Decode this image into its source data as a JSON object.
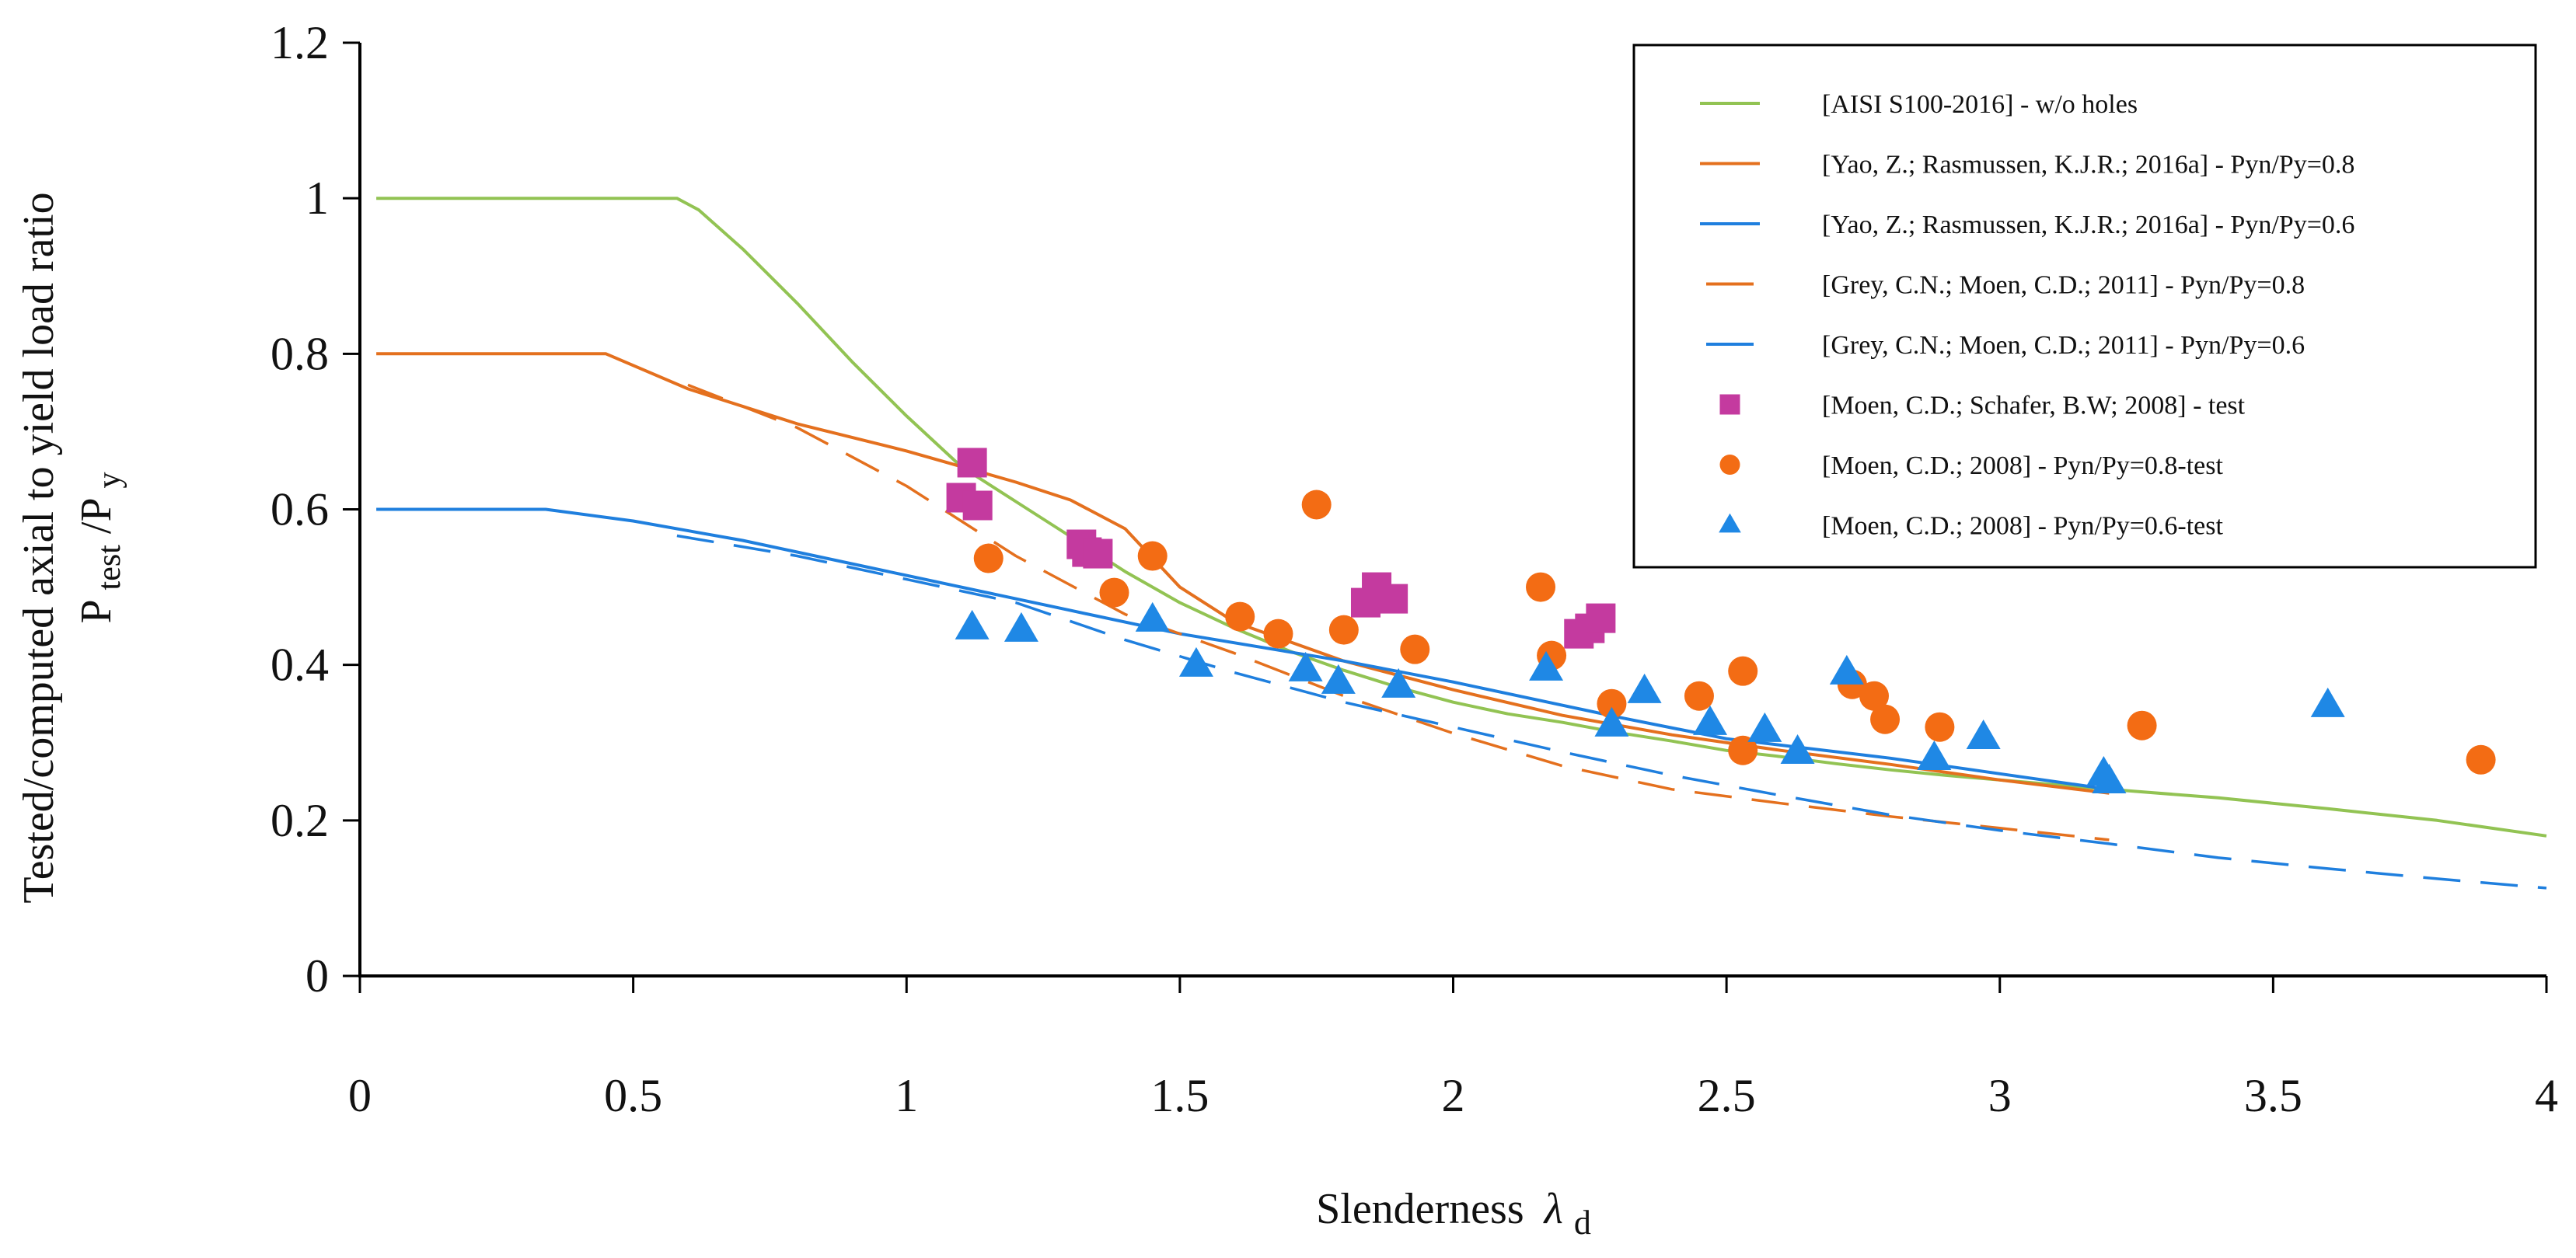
{
  "chart_data": {
    "type": "scatter",
    "xlabel": "Slenderness",
    "xlabel_symbol": "λ",
    "xlabel_subscript": "d",
    "ylabel_line1": "Tested/computed axial to yield load ratio",
    "ylabel_line2_main": "P",
    "ylabel_line2_sub1": "test",
    "ylabel_line2_div": "/P",
    "ylabel_line2_sub2": "y",
    "xlim": [
      0,
      4
    ],
    "ylim": [
      0,
      1.2
    ],
    "xticks": [
      0,
      0.5,
      1,
      1.5,
      2,
      2.5,
      3,
      3.5,
      4
    ],
    "xtick_labels": [
      "0",
      "0.5",
      "1",
      "1.5",
      "2",
      "2.5",
      "3",
      "3.5",
      "4"
    ],
    "yticks": [
      0,
      0.2,
      0.4,
      0.6,
      0.8,
      1,
      1.2
    ],
    "ytick_labels": [
      "0",
      "0.2",
      "0.4",
      "0.6",
      "0.8",
      "1",
      "1.2"
    ],
    "legend_position": "top-right",
    "series": [
      {
        "name": "[AISI S100-2016] - w/o holes",
        "kind": "line",
        "style": "solid",
        "color": "#92c353",
        "points": [
          [
            0.03,
            1.0
          ],
          [
            0.58,
            1.0
          ],
          [
            0.62,
            0.985
          ],
          [
            0.7,
            0.935
          ],
          [
            0.8,
            0.865
          ],
          [
            0.9,
            0.79
          ],
          [
            1.0,
            0.72
          ],
          [
            1.1,
            0.655
          ],
          [
            1.2,
            0.61
          ],
          [
            1.3,
            0.565
          ],
          [
            1.4,
            0.52
          ],
          [
            1.5,
            0.48
          ],
          [
            1.6,
            0.447
          ],
          [
            1.7,
            0.418
          ],
          [
            1.8,
            0.393
          ],
          [
            1.9,
            0.371
          ],
          [
            2.0,
            0.352
          ],
          [
            2.1,
            0.337
          ],
          [
            2.2,
            0.326
          ],
          [
            2.3,
            0.313
          ],
          [
            2.4,
            0.302
          ],
          [
            2.5,
            0.29
          ],
          [
            2.6,
            0.282
          ],
          [
            2.7,
            0.273
          ],
          [
            2.8,
            0.265
          ],
          [
            2.9,
            0.258
          ],
          [
            3.0,
            0.252
          ],
          [
            3.2,
            0.24
          ],
          [
            3.4,
            0.229
          ],
          [
            3.6,
            0.215
          ],
          [
            3.8,
            0.2
          ],
          [
            4.0,
            0.18
          ]
        ]
      },
      {
        "name": "[Yao, Z.; Rasmussen, K.J.R.; 2016a] - Pyn/Py=0.8",
        "kind": "line",
        "style": "solid",
        "color": "#e4701e",
        "points": [
          [
            0.03,
            0.8
          ],
          [
            0.45,
            0.8
          ],
          [
            0.6,
            0.755
          ],
          [
            0.8,
            0.71
          ],
          [
            1.0,
            0.675
          ],
          [
            1.2,
            0.635
          ],
          [
            1.3,
            0.612
          ],
          [
            1.4,
            0.575
          ],
          [
            1.5,
            0.5
          ],
          [
            1.6,
            0.455
          ],
          [
            1.8,
            0.405
          ],
          [
            2.0,
            0.368
          ],
          [
            2.2,
            0.335
          ],
          [
            2.4,
            0.31
          ],
          [
            2.6,
            0.29
          ],
          [
            2.8,
            0.272
          ],
          [
            3.0,
            0.252
          ],
          [
            3.2,
            0.235
          ]
        ]
      },
      {
        "name": "[Yao, Z.; Rasmussen, K.J.R.; 2016a] - Pyn/Py=0.6",
        "kind": "line",
        "style": "solid",
        "color": "#1f7fde",
        "points": [
          [
            0.03,
            0.6
          ],
          [
            0.34,
            0.6
          ],
          [
            0.5,
            0.585
          ],
          [
            0.7,
            0.56
          ],
          [
            1.0,
            0.515
          ],
          [
            1.3,
            0.47
          ],
          [
            1.5,
            0.44
          ],
          [
            1.8,
            0.405
          ],
          [
            2.0,
            0.378
          ],
          [
            2.2,
            0.348
          ],
          [
            2.3,
            0.333
          ],
          [
            2.5,
            0.305
          ],
          [
            2.8,
            0.28
          ],
          [
            3.0,
            0.26
          ],
          [
            3.2,
            0.24
          ]
        ]
      },
      {
        "name": "[Grey, C.N.; Moen, C.D.; 2011] - Pyn/Py=0.8",
        "kind": "line",
        "style": "dashed",
        "color": "#e4701e",
        "points": [
          [
            0.6,
            0.76
          ],
          [
            0.8,
            0.705
          ],
          [
            1.0,
            0.63
          ],
          [
            1.2,
            0.54
          ],
          [
            1.4,
            0.465
          ],
          [
            1.6,
            0.415
          ],
          [
            1.8,
            0.36
          ],
          [
            2.0,
            0.312
          ],
          [
            2.2,
            0.27
          ],
          [
            2.4,
            0.24
          ],
          [
            2.6,
            0.222
          ],
          [
            2.8,
            0.205
          ],
          [
            3.0,
            0.19
          ],
          [
            3.2,
            0.175
          ]
        ]
      },
      {
        "name": "[Grey, C.N.; Moen, C.D.; 2011] - Pyn/Py=0.6",
        "kind": "line",
        "style": "dashed",
        "color": "#1f7fde",
        "points": [
          [
            0.58,
            0.566
          ],
          [
            0.8,
            0.54
          ],
          [
            1.0,
            0.51
          ],
          [
            1.2,
            0.48
          ],
          [
            1.4,
            0.432
          ],
          [
            1.6,
            0.39
          ],
          [
            1.8,
            0.352
          ],
          [
            2.0,
            0.32
          ],
          [
            2.2,
            0.288
          ],
          [
            2.4,
            0.258
          ],
          [
            2.6,
            0.232
          ],
          [
            2.8,
            0.207
          ],
          [
            3.0,
            0.187
          ],
          [
            3.2,
            0.17
          ],
          [
            3.4,
            0.152
          ],
          [
            3.6,
            0.138
          ],
          [
            3.8,
            0.125
          ],
          [
            4.0,
            0.113
          ]
        ]
      },
      {
        "name": "[Moen, C.D.; Schafer, B.W; 2008] - test",
        "kind": "marker",
        "marker": "square",
        "color": "#c43a9f",
        "points": [
          [
            1.12,
            0.66
          ],
          [
            1.1,
            0.615
          ],
          [
            1.13,
            0.605
          ],
          [
            1.32,
            0.555
          ],
          [
            1.33,
            0.545
          ],
          [
            1.35,
            0.543
          ],
          [
            1.84,
            0.48
          ],
          [
            1.86,
            0.5
          ],
          [
            1.89,
            0.485
          ],
          [
            2.23,
            0.44
          ],
          [
            2.25,
            0.447
          ],
          [
            2.27,
            0.46
          ]
        ]
      },
      {
        "name": "[Moen, C.D.; 2008] - Pyn/Py=0.8-test",
        "kind": "marker",
        "marker": "circle",
        "color": "#f36c14",
        "points": [
          [
            1.15,
            0.537
          ],
          [
            1.38,
            0.493
          ],
          [
            1.45,
            0.54
          ],
          [
            1.61,
            0.462
          ],
          [
            1.68,
            0.44
          ],
          [
            1.75,
            0.606
          ],
          [
            1.8,
            0.445
          ],
          [
            1.93,
            0.42
          ],
          [
            2.16,
            0.5
          ],
          [
            2.18,
            0.412
          ],
          [
            2.29,
            0.35
          ],
          [
            2.45,
            0.36
          ],
          [
            2.53,
            0.392
          ],
          [
            2.53,
            0.29
          ],
          [
            2.73,
            0.375
          ],
          [
            2.77,
            0.36
          ],
          [
            2.79,
            0.33
          ],
          [
            2.89,
            0.32
          ],
          [
            3.26,
            0.322
          ],
          [
            3.88,
            0.278
          ]
        ]
      },
      {
        "name": "[Moen, C.D.; 2008] - Pyn/Py=0.6-test",
        "kind": "marker",
        "marker": "triangle",
        "color": "#1f88e5",
        "points": [
          [
            1.12,
            0.448
          ],
          [
            1.21,
            0.445
          ],
          [
            1.45,
            0.458
          ],
          [
            1.53,
            0.4
          ],
          [
            1.73,
            0.394
          ],
          [
            1.79,
            0.378
          ],
          [
            1.9,
            0.373
          ],
          [
            2.17,
            0.395
          ],
          [
            2.29,
            0.323
          ],
          [
            2.35,
            0.366
          ],
          [
            2.47,
            0.325
          ],
          [
            2.57,
            0.316
          ],
          [
            2.63,
            0.288
          ],
          [
            2.72,
            0.39
          ],
          [
            2.88,
            0.28
          ],
          [
            2.97,
            0.307
          ],
          [
            3.19,
            0.26
          ],
          [
            3.2,
            0.25
          ],
          [
            3.6,
            0.348
          ]
        ]
      }
    ]
  }
}
